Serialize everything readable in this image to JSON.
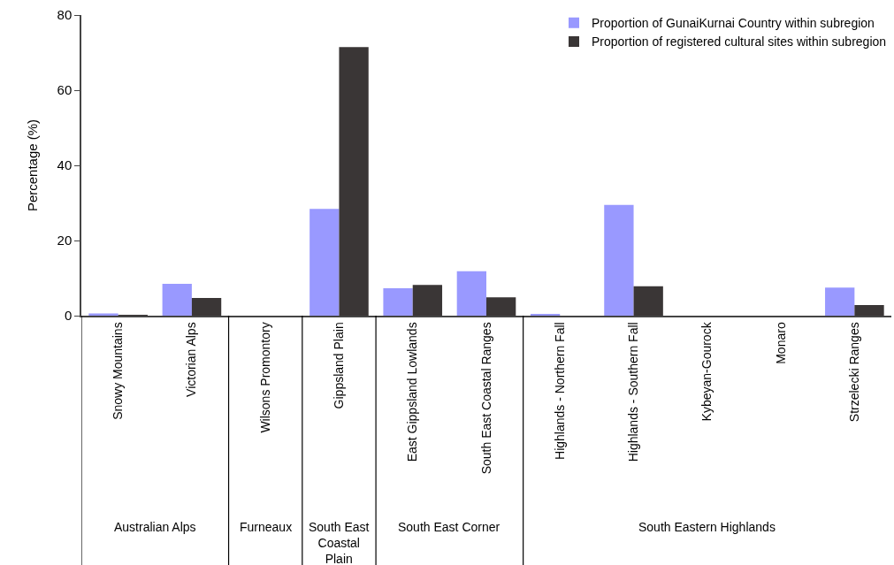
{
  "chart_data": {
    "type": "bar",
    "ylabel": "Percentage (%)",
    "categories": [
      "Snowy Mountains",
      "Victorian Alps",
      "Wilsons Promontory",
      "Gippsland Plain",
      "East Gippsland Lowlands",
      "South East Coastal Ranges",
      "Highlands - Northern Fall",
      "Highlands - Southern Fall",
      "Kybeyan-Gourock",
      "Monaro",
      "Strzelecki Ranges"
    ],
    "series": [
      {
        "name": "Proportion of GunaiKurnai Country within subregion",
        "color": "#9999ff",
        "values": [
          0.6,
          8.5,
          0,
          28.4,
          7.3,
          11.8,
          0.4,
          29.5,
          0,
          0,
          7.5
        ]
      },
      {
        "name": "Proportion of registered cultural sites within subregion",
        "color": "#3a3636",
        "values": [
          0.2,
          4.7,
          0,
          71.5,
          8.2,
          4.9,
          0,
          7.8,
          0,
          0,
          2.8
        ]
      }
    ],
    "annotations": [
      "Australian Alps",
      "Furneaux",
      "South East Coastal Plain",
      "South East Corner",
      "South Eastern Highlands"
    ],
    "ylim": [
      0,
      80
    ],
    "yticks": [
      0,
      20,
      40,
      60,
      80
    ],
    "grid": false,
    "legend": "top right"
  }
}
